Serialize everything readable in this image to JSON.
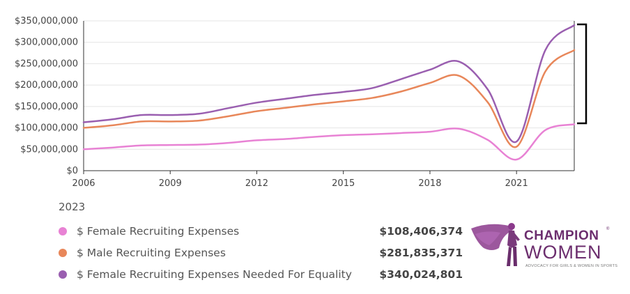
{
  "chart_data": {
    "type": "line",
    "title": "",
    "xlabel": "",
    "ylabel": "",
    "x": [
      2006,
      2007,
      2008,
      2009,
      2010,
      2011,
      2012,
      2013,
      2014,
      2015,
      2016,
      2017,
      2018,
      2019,
      2020,
      2021,
      2022,
      2023
    ],
    "xlim": [
      2006,
      2023
    ],
    "ylim": [
      0,
      350000000
    ],
    "x_ticks": [
      2006,
      2009,
      2012,
      2015,
      2018,
      2021
    ],
    "x_tick_labels": [
      "2006",
      "2009",
      "2012",
      "2015",
      "2018",
      "2021"
    ],
    "y_ticks": [
      0,
      50000000,
      100000000,
      150000000,
      200000000,
      250000000,
      300000000,
      350000000
    ],
    "y_tick_labels": [
      "$0",
      "$50,000,000",
      "$100,000,000",
      "$150,000,000",
      "$200,000,000",
      "$250,000,000",
      "$300,000,000",
      "$350,000,000"
    ],
    "grid": "horizontal",
    "legend_position": "bottom",
    "series": [
      {
        "name": "$ Female Recruiting Expenses",
        "color": "#e882d4",
        "values": [
          50000000,
          54000000,
          59000000,
          60000000,
          61000000,
          65000000,
          71000000,
          74000000,
          79000000,
          83000000,
          85000000,
          88000000,
          91000000,
          98000000,
          72000000,
          26000000,
          95000000,
          108406374
        ]
      },
      {
        "name": "$ Male Recruiting Expenses",
        "color": "#e8875a",
        "values": [
          100000000,
          106000000,
          115000000,
          115000000,
          117000000,
          127000000,
          139000000,
          147000000,
          155000000,
          162000000,
          170000000,
          185000000,
          205000000,
          222000000,
          160000000,
          56000000,
          232000000,
          281835371
        ]
      },
      {
        "name": "$ Female Recruiting Expenses Needed For Equality",
        "color": "#9a5fb0",
        "values": [
          113000000,
          120000000,
          130000000,
          130000000,
          133000000,
          146000000,
          159000000,
          168000000,
          177000000,
          184000000,
          193000000,
          214000000,
          236000000,
          255000000,
          190000000,
          68000000,
          282000000,
          340024801
        ]
      }
    ]
  },
  "legend": {
    "year": "2023",
    "items": [
      {
        "name": "$ Female Recruiting Expenses",
        "value": "$108,406,374",
        "color": "#e882d4"
      },
      {
        "name": "$ Male Recruiting Expenses",
        "value": "$281,835,371",
        "color": "#e8875a"
      },
      {
        "name": "$ Female Recruiting Expenses Needed For Equality",
        "value": "$340,024,801",
        "color": "#9a5fb0"
      }
    ]
  },
  "logo": {
    "line1": "CHAMPION",
    "line2": "WOMEN",
    "tagline": "ADVOCACY FOR GIRLS & WOMEN IN SPORTS",
    "registered": "®"
  }
}
